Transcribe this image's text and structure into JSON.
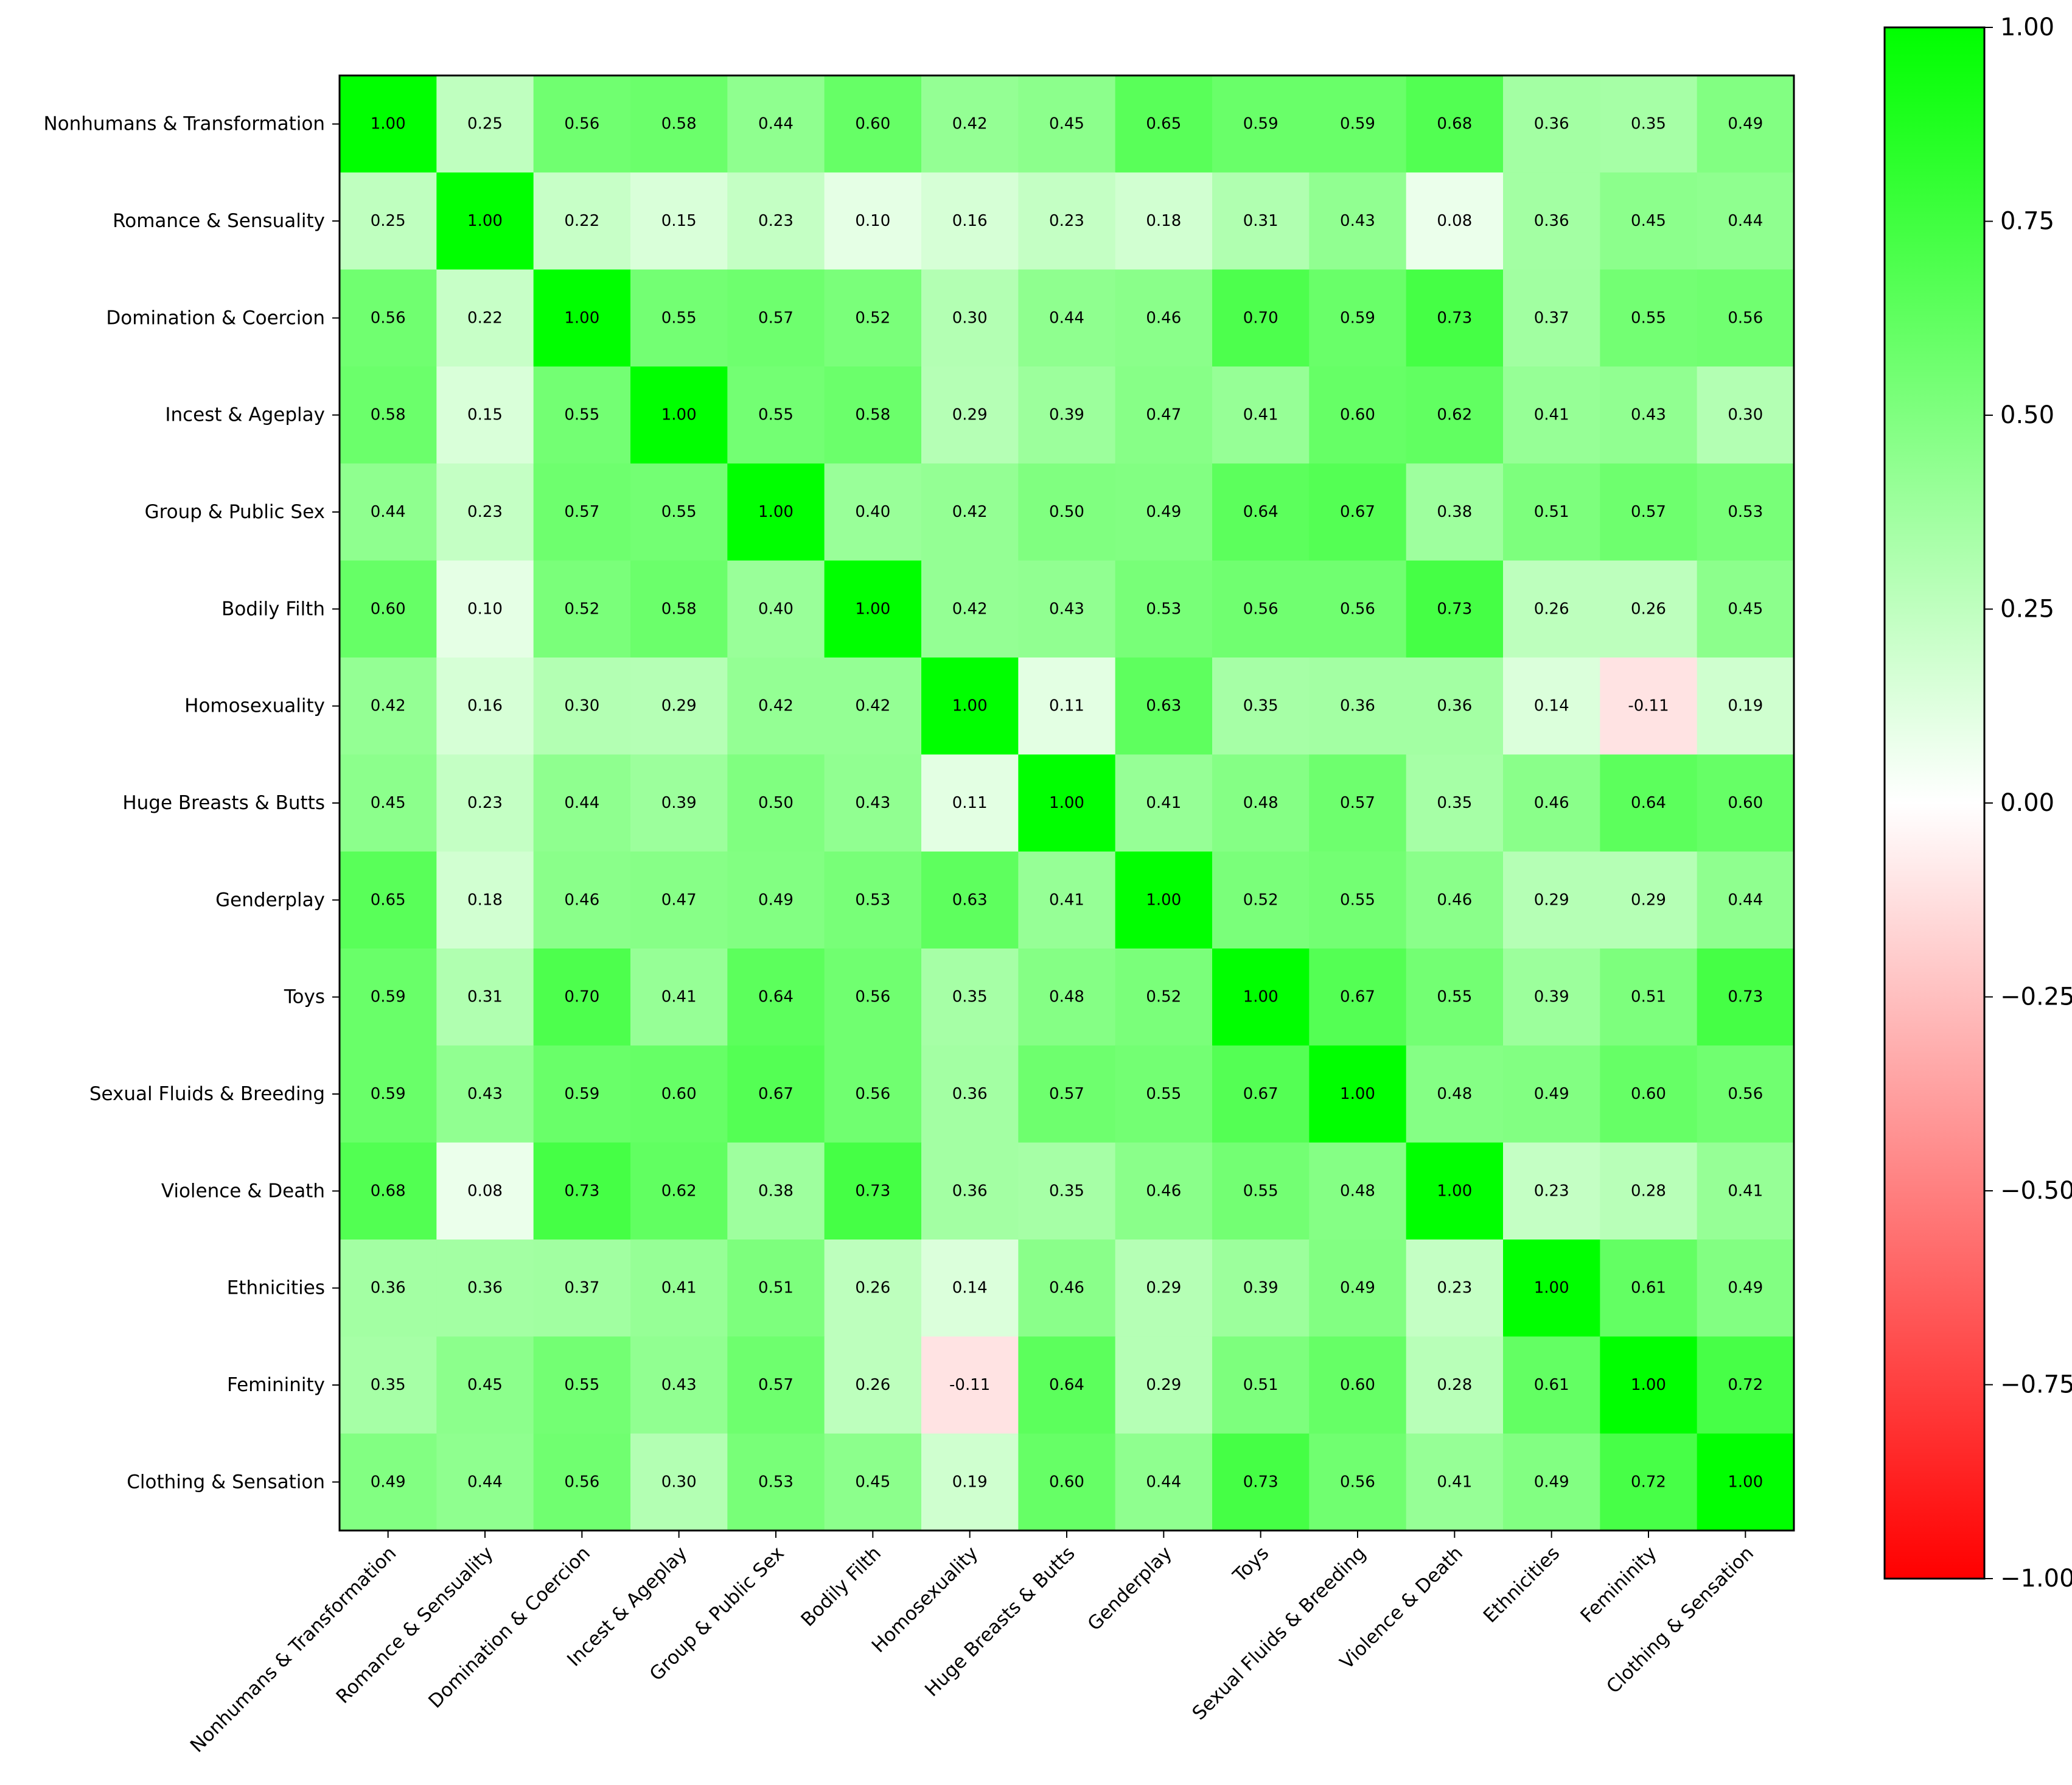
{
  "chart_data": {
    "type": "heatmap",
    "title": "",
    "xlabel": "",
    "ylabel": "",
    "categories": [
      "Nonhumans & Transformation",
      "Romance & Sensuality",
      "Domination & Coercion",
      "Incest & Ageplay",
      "Group & Public Sex",
      "Bodily Filth",
      "Homosexuality",
      "Huge Breasts & Butts",
      "Genderplay",
      "Toys",
      "Sexual Fluids & Breeding",
      "Violence & Death",
      "Ethnicities",
      "Femininity",
      "Clothing & Sensation"
    ],
    "matrix": [
      [
        1.0,
        0.25,
        0.56,
        0.58,
        0.44,
        0.6,
        0.42,
        0.45,
        0.65,
        0.59,
        0.59,
        0.68,
        0.36,
        0.35,
        0.49
      ],
      [
        0.25,
        1.0,
        0.22,
        0.15,
        0.23,
        0.1,
        0.16,
        0.23,
        0.18,
        0.31,
        0.43,
        0.08,
        0.36,
        0.45,
        0.44
      ],
      [
        0.56,
        0.22,
        1.0,
        0.55,
        0.57,
        0.52,
        0.3,
        0.44,
        0.46,
        0.7,
        0.59,
        0.73,
        0.37,
        0.55,
        0.56
      ],
      [
        0.58,
        0.15,
        0.55,
        1.0,
        0.55,
        0.58,
        0.29,
        0.39,
        0.47,
        0.41,
        0.6,
        0.62,
        0.41,
        0.43,
        0.3
      ],
      [
        0.44,
        0.23,
        0.57,
        0.55,
        1.0,
        0.4,
        0.42,
        0.5,
        0.49,
        0.64,
        0.67,
        0.38,
        0.51,
        0.57,
        0.53
      ],
      [
        0.6,
        0.1,
        0.52,
        0.58,
        0.4,
        1.0,
        0.42,
        0.43,
        0.53,
        0.56,
        0.56,
        0.73,
        0.26,
        0.26,
        0.45
      ],
      [
        0.42,
        0.16,
        0.3,
        0.29,
        0.42,
        0.42,
        1.0,
        0.11,
        0.63,
        0.35,
        0.36,
        0.36,
        0.14,
        -0.11,
        0.19
      ],
      [
        0.45,
        0.23,
        0.44,
        0.39,
        0.5,
        0.43,
        0.11,
        1.0,
        0.41,
        0.48,
        0.57,
        0.35,
        0.46,
        0.64,
        0.6
      ],
      [
        0.65,
        0.18,
        0.46,
        0.47,
        0.49,
        0.53,
        0.63,
        0.41,
        1.0,
        0.52,
        0.55,
        0.46,
        0.29,
        0.29,
        0.44
      ],
      [
        0.59,
        0.31,
        0.7,
        0.41,
        0.64,
        0.56,
        0.35,
        0.48,
        0.52,
        1.0,
        0.67,
        0.55,
        0.39,
        0.51,
        0.73
      ],
      [
        0.59,
        0.43,
        0.59,
        0.6,
        0.67,
        0.56,
        0.36,
        0.57,
        0.55,
        0.67,
        1.0,
        0.48,
        0.49,
        0.6,
        0.56
      ],
      [
        0.68,
        0.08,
        0.73,
        0.62,
        0.38,
        0.73,
        0.36,
        0.35,
        0.46,
        0.55,
        0.48,
        1.0,
        0.23,
        0.28,
        0.41
      ],
      [
        0.36,
        0.36,
        0.37,
        0.41,
        0.51,
        0.26,
        0.14,
        0.46,
        0.29,
        0.39,
        0.49,
        0.23,
        1.0,
        0.61,
        0.49
      ],
      [
        0.35,
        0.45,
        0.55,
        0.43,
        0.57,
        0.26,
        -0.11,
        0.64,
        0.29,
        0.51,
        0.6,
        0.28,
        0.61,
        1.0,
        0.72
      ],
      [
        0.49,
        0.44,
        0.56,
        0.3,
        0.53,
        0.45,
        0.19,
        0.6,
        0.44,
        0.73,
        0.56,
        0.41,
        0.49,
        0.72,
        1.0
      ]
    ],
    "vmin": -1.0,
    "vmax": 1.0,
    "colormap": [
      "#ff0000",
      "#ffffff",
      "#00ff00"
    ],
    "colorbar_ticks": [
      "1.00",
      "0.75",
      "0.50",
      "0.25",
      "0.00",
      "−0.25",
      "−0.50",
      "−0.75",
      "−1.00"
    ],
    "colorbar_tick_values": [
      1.0,
      0.75,
      0.5,
      0.25,
      0.0,
      -0.25,
      -0.5,
      -0.75,
      -1.0
    ],
    "legend": "colorbar-right",
    "grid": false
  }
}
